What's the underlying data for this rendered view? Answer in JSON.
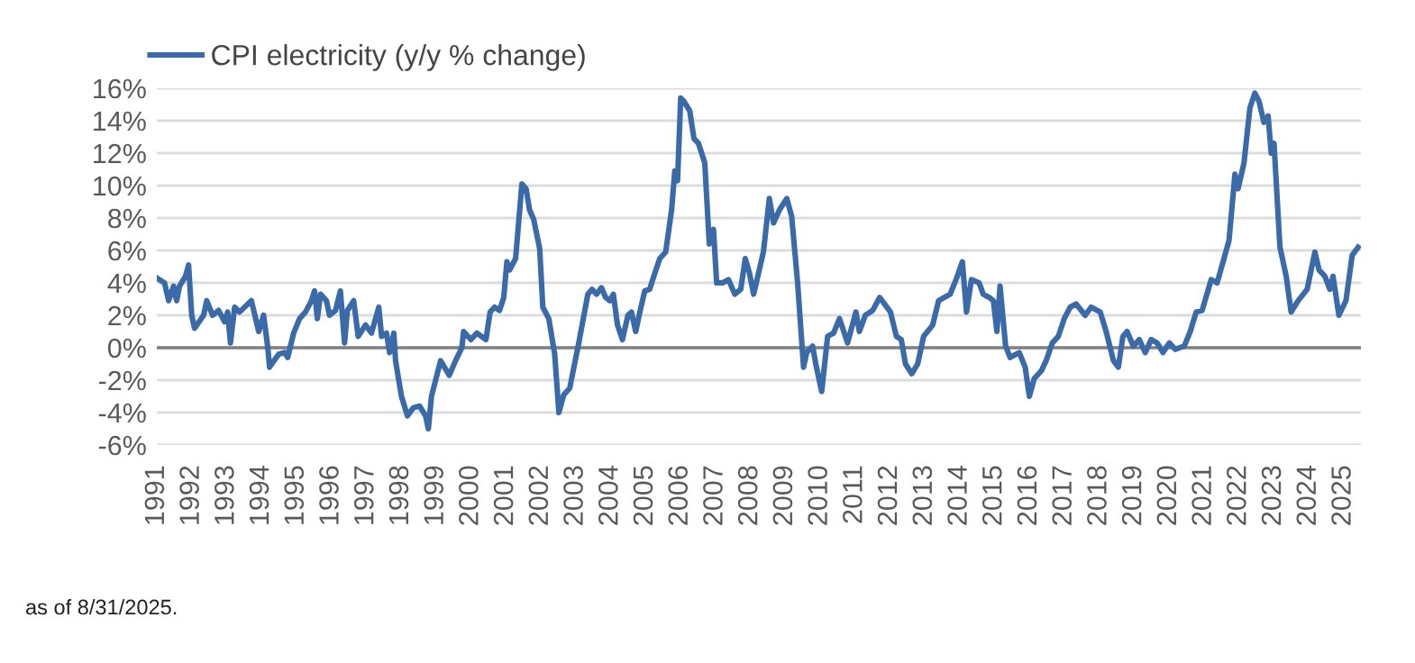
{
  "chart_data": {
    "type": "line",
    "x": [
      1991.0,
      1991.22,
      1991.34,
      1991.48,
      1991.57,
      1991.65,
      1991.82,
      1991.91,
      1992.0,
      1992.08,
      1992.34,
      1992.43,
      1992.6,
      1992.77,
      1992.94,
      1993.03,
      1993.11,
      1993.23,
      1993.37,
      1993.71,
      1993.92,
      1994.06,
      1994.18,
      1994.23,
      1994.49,
      1994.66,
      1994.75,
      1994.92,
      1995.09,
      1995.26,
      1995.43,
      1995.52,
      1995.6,
      1995.69,
      1995.86,
      1995.95,
      1996.12,
      1996.26,
      1996.38,
      1996.46,
      1996.64,
      1996.77,
      1996.98,
      1997.15,
      1997.36,
      1997.44,
      1997.58,
      1997.67,
      1997.79,
      1997.84,
      1998.01,
      1998.18,
      1998.35,
      1998.53,
      1998.7,
      1998.78,
      1998.87,
      1999.13,
      1999.38,
      1999.56,
      1999.74,
      1999.79,
      2000.0,
      2000.17,
      2000.43,
      2000.55,
      2000.68,
      2000.82,
      2000.94,
      2001.03,
      2001.11,
      2001.28,
      2001.46,
      2001.58,
      2001.68,
      2001.8,
      2001.97,
      2002.06,
      2002.23,
      2002.4,
      2002.52,
      2002.66,
      2002.83,
      2003.09,
      2003.35,
      2003.47,
      2003.6,
      2003.74,
      2003.86,
      2003.98,
      2004.08,
      2004.2,
      2004.34,
      2004.5,
      2004.6,
      2004.72,
      2004.84,
      2004.98,
      2005.12,
      2005.24,
      2005.41,
      2005.58,
      2005.75,
      2005.84,
      2005.92,
      2006.01,
      2006.1,
      2006.27,
      2006.39,
      2006.52,
      2006.7,
      2006.83,
      2006.95,
      2007.04,
      2007.21,
      2007.38,
      2007.56,
      2007.73,
      2007.86,
      2007.98,
      2008.1,
      2008.24,
      2008.38,
      2008.55,
      2008.67,
      2008.84,
      2009.05,
      2009.19,
      2009.36,
      2009.53,
      2009.62,
      2009.79,
      2009.88,
      2010.05,
      2010.22,
      2010.39,
      2010.56,
      2010.79,
      2011.03,
      2011.13,
      2011.3,
      2011.51,
      2011.71,
      2011.85,
      2012.02,
      2012.19,
      2012.33,
      2012.45,
      2012.63,
      2012.8,
      2012.97,
      2013.23,
      2013.4,
      2013.56,
      2013.73,
      2013.9,
      2014.08,
      2014.2,
      2014.34,
      2014.56,
      2014.68,
      2014.85,
      2014.97,
      2015.07,
      2015.16,
      2015.32,
      2015.45,
      2015.71,
      2015.88,
      2016.0,
      2016.14,
      2016.35,
      2016.48,
      2016.66,
      2016.83,
      2017.0,
      2017.17,
      2017.34,
      2017.6,
      2017.77,
      2018.03,
      2018.2,
      2018.41,
      2018.55,
      2018.68,
      2018.8,
      2018.98,
      2019.15,
      2019.32,
      2019.49,
      2019.66,
      2019.83,
      2020.01,
      2020.18,
      2020.44,
      2020.61,
      2020.78,
      2020.95,
      2021.21,
      2021.38,
      2021.55,
      2021.72,
      2021.89,
      2021.98,
      2022.15,
      2022.32,
      2022.46,
      2022.58,
      2022.72,
      2022.84,
      2022.93,
      2023.01,
      2023.18,
      2023.36,
      2023.5,
      2023.7,
      2023.96,
      2024.18,
      2024.3,
      2024.47,
      2024.61,
      2024.7,
      2024.87,
      2025.07,
      2025.25,
      2025.42
    ],
    "series": [
      {
        "name": "CPI electricity (y/y % change)",
        "color": "#3a6aa8",
        "values": [
          4.3,
          4.0,
          2.9,
          3.8,
          2.9,
          3.8,
          4.4,
          5.1,
          2.0,
          1.2,
          2.0,
          2.9,
          2.0,
          2.3,
          1.6,
          2.2,
          0.3,
          2.5,
          2.2,
          2.9,
          1.0,
          2.0,
          0.0,
          -1.2,
          -0.4,
          -0.3,
          -0.6,
          0.9,
          1.8,
          2.2,
          2.9,
          3.5,
          1.8,
          3.3,
          2.9,
          2.0,
          2.3,
          3.5,
          0.3,
          2.3,
          2.9,
          0.7,
          1.4,
          0.9,
          2.5,
          0.7,
          0.9,
          -0.3,
          0.9,
          -0.8,
          -3.0,
          -4.2,
          -3.7,
          -3.6,
          -4.2,
          -5.0,
          -3.0,
          -0.8,
          -1.7,
          -0.8,
          0.0,
          1.0,
          0.5,
          0.9,
          0.5,
          2.2,
          2.5,
          2.3,
          3.1,
          5.3,
          4.8,
          5.5,
          10.1,
          9.8,
          8.5,
          7.9,
          6.1,
          2.5,
          1.8,
          -0.4,
          -4.0,
          -2.9,
          -2.5,
          0.3,
          3.3,
          3.6,
          3.3,
          3.7,
          3.1,
          2.9,
          3.3,
          1.4,
          0.5,
          2.0,
          2.2,
          1.0,
          2.2,
          3.5,
          3.6,
          4.4,
          5.5,
          5.9,
          8.5,
          10.9,
          10.3,
          15.4,
          15.2,
          14.6,
          12.9,
          12.6,
          11.4,
          6.4,
          7.3,
          4.0,
          4.0,
          4.2,
          3.3,
          3.6,
          5.5,
          4.6,
          3.3,
          4.6,
          5.9,
          9.2,
          7.7,
          8.5,
          9.2,
          8.1,
          4.0,
          -1.2,
          -0.3,
          0.1,
          -1.0,
          -2.7,
          0.7,
          0.9,
          1.8,
          0.3,
          2.2,
          1.0,
          2.0,
          2.3,
          3.1,
          2.7,
          2.2,
          0.7,
          0.5,
          -1.0,
          -1.6,
          -1.0,
          0.7,
          1.4,
          2.9,
          3.1,
          3.3,
          4.2,
          5.3,
          2.2,
          4.2,
          4.0,
          3.3,
          3.1,
          2.9,
          1.0,
          3.8,
          0.1,
          -0.6,
          -0.3,
          -1.2,
          -3.0,
          -1.9,
          -1.4,
          -0.8,
          0.3,
          0.7,
          1.8,
          2.5,
          2.7,
          2.0,
          2.5,
          2.2,
          1.0,
          -0.8,
          -1.2,
          0.7,
          1.0,
          0.1,
          0.5,
          -0.3,
          0.5,
          0.3,
          -0.3,
          0.3,
          -0.1,
          0.1,
          1.0,
          2.2,
          2.3,
          4.2,
          4.0,
          5.3,
          6.6,
          10.7,
          9.8,
          11.4,
          14.8,
          15.7,
          15.2,
          13.9,
          14.3,
          12.0,
          12.6,
          6.2,
          4.4,
          2.2,
          2.9,
          3.6,
          5.9,
          4.8,
          4.4,
          3.6,
          4.4,
          2.0,
          2.9,
          5.7,
          6.2
        ]
      }
    ],
    "xlim": [
      1991.0,
      2025.5
    ],
    "xticks": [
      {
        "value": 1991,
        "label": "1991"
      },
      {
        "value": 1992,
        "label": "1992"
      },
      {
        "value": 1993,
        "label": "1993"
      },
      {
        "value": 1994,
        "label": "1994"
      },
      {
        "value": 1995,
        "label": "1995"
      },
      {
        "value": 1996,
        "label": "1996"
      },
      {
        "value": 1997,
        "label": "1997"
      },
      {
        "value": 1998,
        "label": "1998"
      },
      {
        "value": 1999,
        "label": "1999"
      },
      {
        "value": 2000,
        "label": "2000"
      },
      {
        "value": 2001,
        "label": "2001"
      },
      {
        "value": 2002,
        "label": "2002"
      },
      {
        "value": 2003,
        "label": "2003"
      },
      {
        "value": 2004,
        "label": "2004"
      },
      {
        "value": 2005,
        "label": "2005"
      },
      {
        "value": 2006,
        "label": "2006"
      },
      {
        "value": 2007,
        "label": "2007"
      },
      {
        "value": 2008,
        "label": "2008"
      },
      {
        "value": 2009,
        "label": "2009"
      },
      {
        "value": 2010,
        "label": "2010"
      },
      {
        "value": 2011,
        "label": "2011"
      },
      {
        "value": 2012,
        "label": "2012"
      },
      {
        "value": 2013,
        "label": "2013"
      },
      {
        "value": 2014,
        "label": "2014"
      },
      {
        "value": 2015,
        "label": "2015"
      },
      {
        "value": 2016,
        "label": "2016"
      },
      {
        "value": 2017,
        "label": "2017"
      },
      {
        "value": 2018,
        "label": "2018"
      },
      {
        "value": 2019,
        "label": "2019"
      },
      {
        "value": 2020,
        "label": "2020"
      },
      {
        "value": 2021,
        "label": "2021"
      },
      {
        "value": 2022,
        "label": "2022"
      },
      {
        "value": 2023,
        "label": "2023"
      },
      {
        "value": 2024,
        "label": "2024"
      },
      {
        "value": 2025,
        "label": "2025"
      }
    ],
    "ylim": [
      -6,
      16
    ],
    "yticks": [
      {
        "value": -6,
        "label": "-6%"
      },
      {
        "value": -4,
        "label": "-4%"
      },
      {
        "value": -2,
        "label": "-2%"
      },
      {
        "value": 0,
        "label": "0%"
      },
      {
        "value": 2,
        "label": "2%"
      },
      {
        "value": 4,
        "label": "4%"
      },
      {
        "value": 6,
        "label": "6%"
      },
      {
        "value": 8,
        "label": "8%"
      },
      {
        "value": 10,
        "label": "10%"
      },
      {
        "value": 12,
        "label": "12%"
      },
      {
        "value": 14,
        "label": "14%"
      },
      {
        "value": 16,
        "label": "16%"
      }
    ],
    "ref_lines": [
      {
        "axis": "y",
        "value": 0,
        "color": "#808080"
      }
    ],
    "grid": "y",
    "legend": "top left",
    "line_style": "solid",
    "marker": "none",
    "annotations": [
      "as of 8/31/2025."
    ]
  }
}
